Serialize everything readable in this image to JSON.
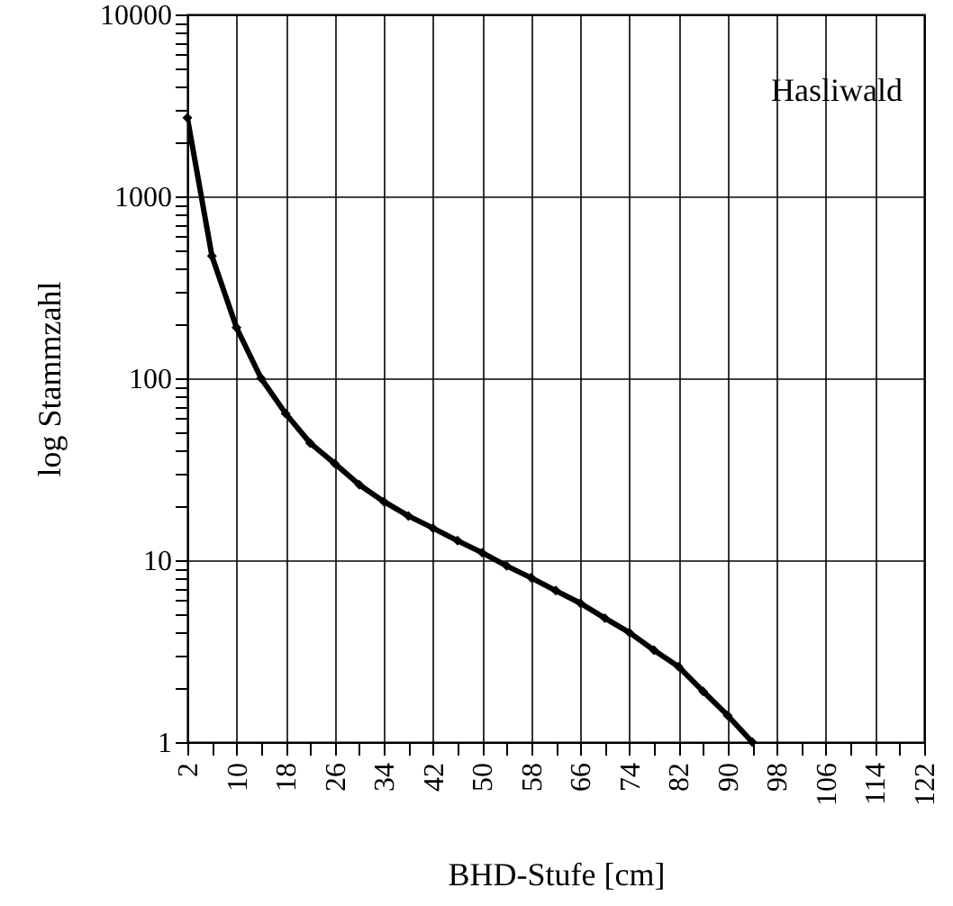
{
  "chart_data": {
    "type": "line",
    "xlabel": "BHD-Stufe [cm]",
    "ylabel": "log Stammzahl",
    "annotations": [
      "Hasliwald"
    ],
    "x": [
      2,
      6,
      10,
      14,
      18,
      22,
      26,
      30,
      34,
      38,
      42,
      46,
      50,
      54,
      58,
      62,
      66,
      70,
      74,
      78,
      82,
      86,
      90,
      94
    ],
    "values": [
      2700,
      470,
      190,
      100,
      64,
      44,
      34,
      26,
      21,
      17.5,
      15,
      12.8,
      11,
      9.3,
      8,
      6.8,
      5.8,
      4.8,
      4,
      3.2,
      2.6,
      1.9,
      1.4,
      1
    ],
    "color": "#000000",
    "marker": "diamond",
    "line_style": "solid",
    "log": "y",
    "grid": true,
    "xlim": [
      2,
      122
    ],
    "xticks": [
      2,
      {
        "value": 6,
        "label": null
      },
      10,
      {
        "value": 14,
        "label": null
      },
      18,
      {
        "value": 22,
        "label": null
      },
      26,
      {
        "value": 30,
        "label": null
      },
      34,
      {
        "value": 38,
        "label": null
      },
      42,
      {
        "value": 46,
        "label": null
      },
      50,
      {
        "value": 54,
        "label": null
      },
      58,
      {
        "value": 62,
        "label": null
      },
      66,
      {
        "value": 70,
        "label": null
      },
      74,
      {
        "value": 78,
        "label": null
      },
      82,
      {
        "value": 86,
        "label": null
      },
      90,
      {
        "value": 94,
        "label": null
      },
      98,
      {
        "value": 102,
        "label": null
      },
      106,
      {
        "value": 110,
        "label": null
      },
      114,
      {
        "value": 118,
        "label": null
      },
      122
    ],
    "ylim": [
      1,
      10000
    ],
    "yticks": [
      1,
      {
        "value": 2,
        "label": null
      },
      {
        "value": 3,
        "label": null
      },
      {
        "value": 4,
        "label": null
      },
      {
        "value": 5,
        "label": null
      },
      {
        "value": 6,
        "label": null
      },
      {
        "value": 7,
        "label": null
      },
      {
        "value": 8,
        "label": null
      },
      {
        "value": 9,
        "label": null
      },
      10,
      {
        "value": 20,
        "label": null
      },
      {
        "value": 30,
        "label": null
      },
      {
        "value": 40,
        "label": null
      },
      {
        "value": 50,
        "label": null
      },
      {
        "value": 60,
        "label": null
      },
      {
        "value": 70,
        "label": null
      },
      {
        "value": 80,
        "label": null
      },
      {
        "value": 90,
        "label": null
      },
      100,
      {
        "value": 200,
        "label": null
      },
      {
        "value": 300,
        "label": null
      },
      {
        "value": 400,
        "label": null
      },
      {
        "value": 500,
        "label": null
      },
      {
        "value": 600,
        "label": null
      },
      {
        "value": 700,
        "label": null
      },
      {
        "value": 800,
        "label": null
      },
      {
        "value": 900,
        "label": null
      },
      1000,
      {
        "value": 2000,
        "label": null
      },
      {
        "value": 3000,
        "label": null
      },
      {
        "value": 4000,
        "label": null
      },
      {
        "value": 5000,
        "label": null
      },
      {
        "value": 6000,
        "label": null
      },
      {
        "value": 7000,
        "label": null
      },
      {
        "value": 8000,
        "label": null
      },
      {
        "value": 9000,
        "label": null
      },
      10000
    ]
  }
}
